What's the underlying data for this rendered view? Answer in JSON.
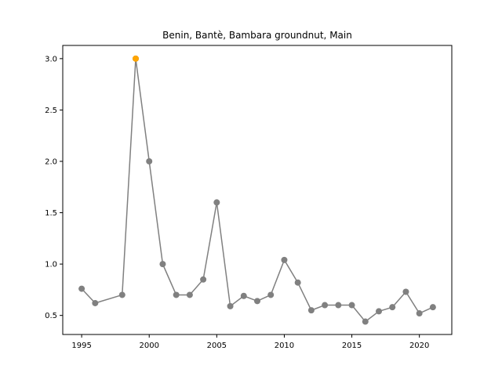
{
  "chart_data": {
    "type": "line",
    "title": "Benin, Bantè, Bambara groundnut, Main",
    "xlabel": "",
    "ylabel": "",
    "xlim": [
      1993.6,
      2022.4
    ],
    "ylim": [
      0.3145,
      3.1285
    ],
    "x_ticks": [
      1995,
      2000,
      2005,
      2010,
      2015,
      2020
    ],
    "y_ticks": [
      0.5,
      1.0,
      1.5,
      2.0,
      2.5,
      3.0
    ],
    "grid": false,
    "series": [
      {
        "color": "#808080",
        "x": [
          1995,
          1996,
          1998,
          1999,
          2000,
          2001,
          2002,
          2003,
          2004,
          2005,
          2006,
          2007,
          2008,
          2009,
          2010,
          2011,
          2012,
          2013,
          2014,
          2015,
          2016,
          2017,
          2018,
          2019,
          2020,
          2021
        ],
        "y": [
          0.76,
          0.62,
          0.7,
          3.0,
          2.0,
          1.0,
          0.7,
          0.7,
          0.85,
          1.6,
          0.59,
          0.69,
          0.64,
          0.7,
          1.04,
          0.82,
          0.55,
          0.6,
          0.6,
          0.6,
          0.44,
          0.54,
          0.58,
          0.73,
          0.52,
          0.58
        ]
      }
    ],
    "highlight": {
      "x": 1999,
      "y": 3.0,
      "color": "#ffa500"
    }
  }
}
